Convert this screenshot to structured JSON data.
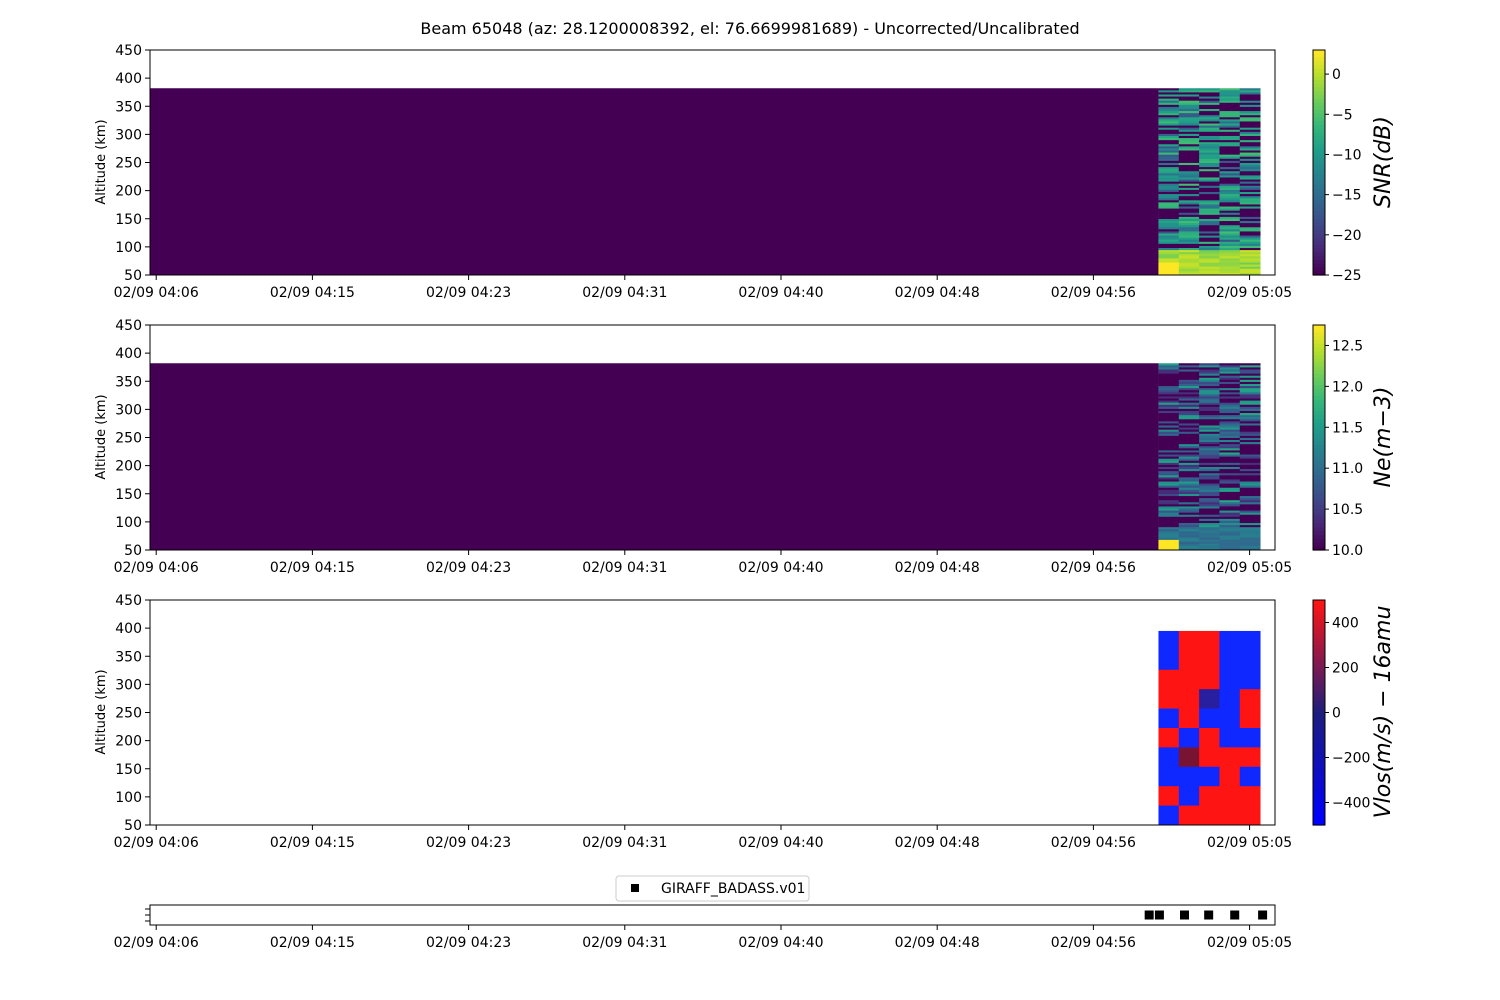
{
  "title": "Beam 65048 (az: 28.1200008392, el: 76.6699981689) - Uncorrected/Uncalibrated",
  "x_tick_labels": [
    "02/09 04:06",
    "02/09 04:15",
    "02/09 04:23",
    "02/09 04:31",
    "02/09 04:40",
    "02/09 04:48",
    "02/09 04:56",
    "02/09 05:05"
  ],
  "chart_data": [
    {
      "type": "heatmap",
      "quantity": "SNR",
      "ylabel": "Altitude (km)",
      "colorbar_label": "SNR(dB)",
      "colormap": "viridis",
      "clim": [
        -25,
        3
      ],
      "colorbar_ticks": [
        0,
        -5,
        -10,
        -15,
        -20,
        -25
      ],
      "y_ticks": [
        50,
        100,
        150,
        200,
        250,
        300,
        350,
        400,
        450
      ],
      "ylim": [
        50,
        450
      ],
      "altitude_top_km": 382,
      "background_value": -25,
      "data_start_time": "04:59",
      "data_columns_times": [
        "05:00",
        "05:01",
        "05:03",
        "05:05"
      ],
      "low_altitude_peak_db": 3
    },
    {
      "type": "heatmap",
      "quantity": "Ne",
      "ylabel": "Altitude (km)",
      "colorbar_label": "Ne(m−3)",
      "colormap": "viridis",
      "clim": [
        10.0,
        12.75
      ],
      "colorbar_ticks": [
        "12.5",
        "12.0",
        "11.5",
        "11.0",
        "10.5",
        "10.0"
      ],
      "y_ticks": [
        50,
        100,
        150,
        200,
        250,
        300,
        350,
        400,
        450
      ],
      "ylim": [
        50,
        450
      ],
      "altitude_top_km": 382,
      "background_value": 10.0,
      "data_start_time": "04:59",
      "low_altitude_peak_log10": 12.75
    },
    {
      "type": "heatmap",
      "quantity": "Vlos",
      "ylabel": "Altitude (km)",
      "colorbar_label": "Vlos(m/s) − 16amu",
      "colormap": "bwr",
      "clim": [
        -500,
        500
      ],
      "colorbar_ticks": [
        400,
        200,
        0,
        -200,
        -400
      ],
      "y_ticks": [
        50,
        100,
        150,
        200,
        250,
        300,
        350,
        400,
        450
      ],
      "ylim": [
        50,
        450
      ],
      "altitude_top_km": 395,
      "row_altitudes_km": [
        395,
        360,
        325,
        290,
        255,
        220,
        185,
        150,
        115,
        80
      ],
      "cells": [
        [
          "blue",
          "red",
          "red",
          "blue",
          "blue"
        ],
        [
          "blue",
          "red",
          "red",
          "blue",
          "blue"
        ],
        [
          "red",
          "red",
          "red",
          "blue",
          "blue"
        ],
        [
          "red",
          "red",
          "navy",
          "blue",
          "red"
        ],
        [
          "blue",
          "red",
          "blue",
          "blue",
          "red"
        ],
        [
          "red",
          "blue",
          "red",
          "blue",
          "blue"
        ],
        [
          "blue",
          "darkred",
          "red",
          "red",
          "red"
        ],
        [
          "blue",
          "blue",
          "blue",
          "red",
          "blue"
        ],
        [
          "red",
          "blue",
          "red",
          "red",
          "red"
        ],
        [
          "blue",
          "red",
          "red",
          "red",
          "red"
        ]
      ],
      "column_times": [
        "05:00",
        "05:01",
        "05:02",
        "05:03",
        "05:04"
      ]
    },
    {
      "type": "scatter",
      "legend": "GIRAFF_BADASS.v01",
      "legend_position": "top-center",
      "marker": "square",
      "x_times": [
        "05:00",
        "05:00",
        "05:01",
        "05:02",
        "05:03",
        "05:04"
      ]
    }
  ]
}
